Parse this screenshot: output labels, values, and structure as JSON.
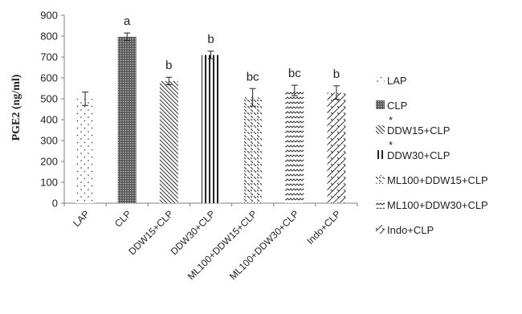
{
  "chart_data": {
    "type": "bar",
    "ylabel": "PGE2 (ng/ml)",
    "xlabel": "",
    "ylim": [
      0,
      900
    ],
    "yticks": [
      0,
      100,
      200,
      300,
      400,
      500,
      600,
      700,
      800,
      900
    ],
    "grid": false,
    "legend_position": "right",
    "categories": [
      "LAP",
      "CLP",
      "DDW15+CLP",
      "DDW30+CLP",
      "ML100+DDW15+CLP",
      "ML100+DDW30+CLP",
      "Indo+CLP"
    ],
    "values": [
      500,
      797,
      585,
      710,
      507,
      540,
      530
    ],
    "errors": [
      32,
      18,
      18,
      18,
      42,
      25,
      32
    ],
    "significance": [
      "",
      "a",
      "b",
      "b",
      "bc",
      "bc",
      "b"
    ],
    "legend": [
      {
        "label": "LAP",
        "pattern": "dots-sparse",
        "marker": ""
      },
      {
        "label": "CLP",
        "pattern": "dense-grid",
        "marker": ""
      },
      {
        "label": "DDW15+CLP",
        "pattern": "diag-down",
        "marker": "*"
      },
      {
        "label": "DDW30+CLP",
        "pattern": "vertical",
        "marker": "*"
      },
      {
        "label": "ML100+DDW15+CLP",
        "pattern": "dashed-diag",
        "marker": ""
      },
      {
        "label": "ML100+DDW30+CLP",
        "pattern": "wave",
        "marker": ""
      },
      {
        "label": "Indo+CLP",
        "pattern": "checker-diag",
        "marker": ""
      }
    ],
    "colors": {
      "ink": "#222222",
      "axis": "#7f7f7f",
      "fill": "#ffffff"
    }
  }
}
